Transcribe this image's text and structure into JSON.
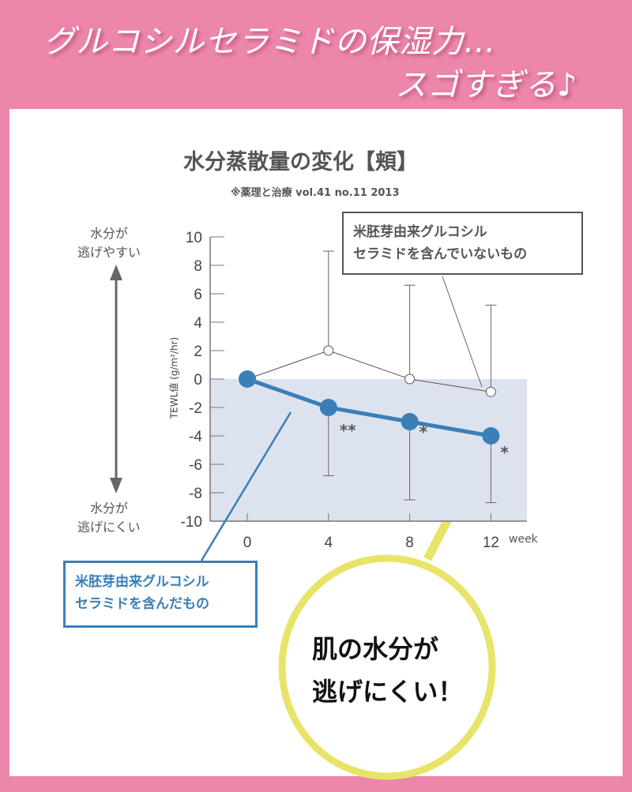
{
  "headline": {
    "line1": "グルコシルセラミドの保湿力…",
    "line2": "スゴすぎる♪"
  },
  "colors": {
    "background": "#ec86aa",
    "treated": "#3a7fb8",
    "control": "#555555",
    "shade": "#dde3ee",
    "callout": "#e8e46a"
  },
  "chart_data": {
    "type": "line",
    "title": "水分蒸散量の変化【頬】",
    "subtitle": "※薬理と治療 vol.41 no.11 2013",
    "ylabel": "TEWL値 (g/m²/hr)",
    "xlabel": "week",
    "x": [
      0,
      4,
      8,
      12
    ],
    "xticks": [
      "0",
      "4",
      "8",
      "12"
    ],
    "ylim": [
      -10,
      10
    ],
    "yticks": [
      "10",
      "8",
      "6",
      "4",
      "2",
      "0",
      "-2",
      "-4",
      "-6",
      "-8",
      "-10"
    ],
    "grid": false,
    "series": [
      {
        "name": "米胚芽由来グルコシルセラミドを含んでいないもの",
        "values": [
          0,
          2,
          0,
          -0.9
        ],
        "error_upper": [
          null,
          9,
          6.6,
          5.2
        ],
        "marker": "open-circle"
      },
      {
        "name": "米胚芽由来グルコシルセラミドを含んだもの",
        "values": [
          0,
          -2,
          -3,
          -4
        ],
        "error_lower": [
          null,
          -6.8,
          -8.5,
          -8.7
        ],
        "marker": "filled-circle",
        "significance": [
          "",
          "**",
          "*",
          "*"
        ]
      }
    ],
    "legend_control": [
      "米胚芽由来グルコシル",
      "セラミドを含んでいないもの"
    ],
    "legend_treated": [
      "米胚芽由来グルコシル",
      "セラミドを含んだもの"
    ],
    "scale_top": [
      "水分が",
      "逃げやすい"
    ],
    "scale_bottom": [
      "水分が",
      "逃げにくい"
    ]
  },
  "callout": {
    "line1": "肌の水分が",
    "line2": "逃げにくい！"
  }
}
